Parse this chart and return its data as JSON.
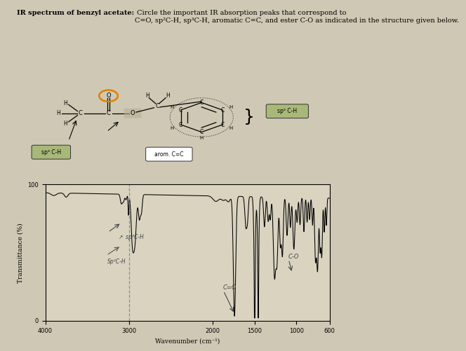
{
  "title_bold": "IR spectrum of benzyl acetate:",
  "title_rest": " Circle the important IR absorption peaks that correspond to\nC=O, sp²C-H, sp³C-H, aromatic C=C, and ester C-O as indicated in the structure given below.",
  "xlabel": "Wavenumber (cm⁻¹)",
  "ylabel": "Transmittance (%)",
  "xlim": [
    4000,
    600
  ],
  "ylim": [
    0,
    100
  ],
  "xticks": [
    4000,
    3000,
    2000,
    1500,
    1000,
    600
  ],
  "bg_color": "#cfc8b4",
  "plot_bg": "#d9d3c0",
  "dashed_line_x": 3000,
  "sp2_label": "Sp²C-H",
  "sp3_label": "sp³C-H",
  "co_label": "C=O",
  "co2_label": "C-O",
  "arom_label": "arom. C=C",
  "sp2box_label": "sp² C-H",
  "sp3box_label": "sp³ C-H"
}
